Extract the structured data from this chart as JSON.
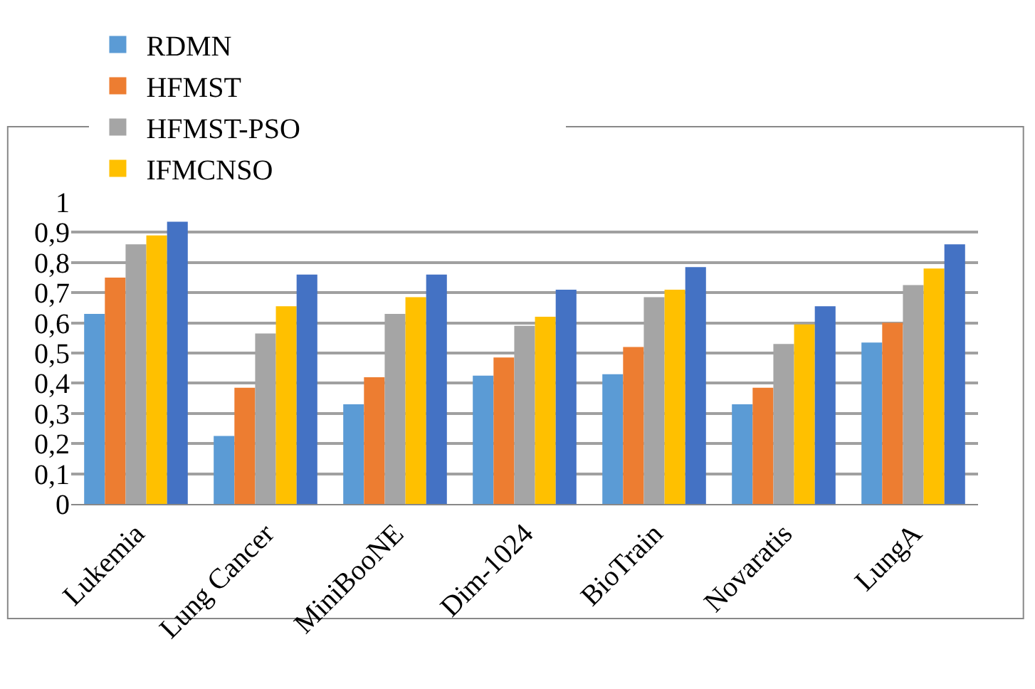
{
  "chart_data": {
    "type": "bar",
    "categories": [
      "Lukemia",
      "Lung Cancer",
      "MiniBooNE",
      "Dim-1024",
      "BioTrain",
      "Novaratis",
      "LungA"
    ],
    "series": [
      {
        "name": "RDMN",
        "color": "#5b9bd5",
        "values": [
          0.63,
          0.225,
          0.33,
          0.425,
          0.43,
          0.33,
          0.535
        ]
      },
      {
        "name": "HFMST",
        "color": "#ed7d31",
        "values": [
          0.75,
          0.385,
          0.42,
          0.485,
          0.52,
          0.385,
          0.6
        ]
      },
      {
        "name": "HFMST-PSO",
        "color": "#a5a5a5",
        "values": [
          0.86,
          0.565,
          0.63,
          0.59,
          0.685,
          0.53,
          0.725
        ]
      },
      {
        "name": "IFMCNSO",
        "color": "#ffc000",
        "values": [
          0.89,
          0.655,
          0.685,
          0.62,
          0.71,
          0.595,
          0.78
        ]
      },
      {
        "color": "#4472c4",
        "values": [
          0.935,
          0.76,
          0.76,
          0.71,
          0.785,
          0.655,
          0.86
        ]
      }
    ],
    "ylim": [
      0,
      1
    ],
    "yticks": [
      0,
      {
        "value": 0.1,
        "label": "0,1"
      },
      {
        "value": 0.2,
        "label": "0,2"
      },
      {
        "value": 0.3,
        "label": "0,3"
      },
      {
        "value": 0.4,
        "label": "0,4"
      },
      {
        "value": 0.5,
        "label": "0,5"
      },
      {
        "value": 0.6,
        "label": "0,6"
      },
      {
        "value": 0.7,
        "label": "0,7"
      },
      {
        "value": 0.8,
        "label": "0,8"
      },
      {
        "value": 0.9,
        "label": "0,9"
      },
      1
    ],
    "grid": "y",
    "legend": "top"
  }
}
